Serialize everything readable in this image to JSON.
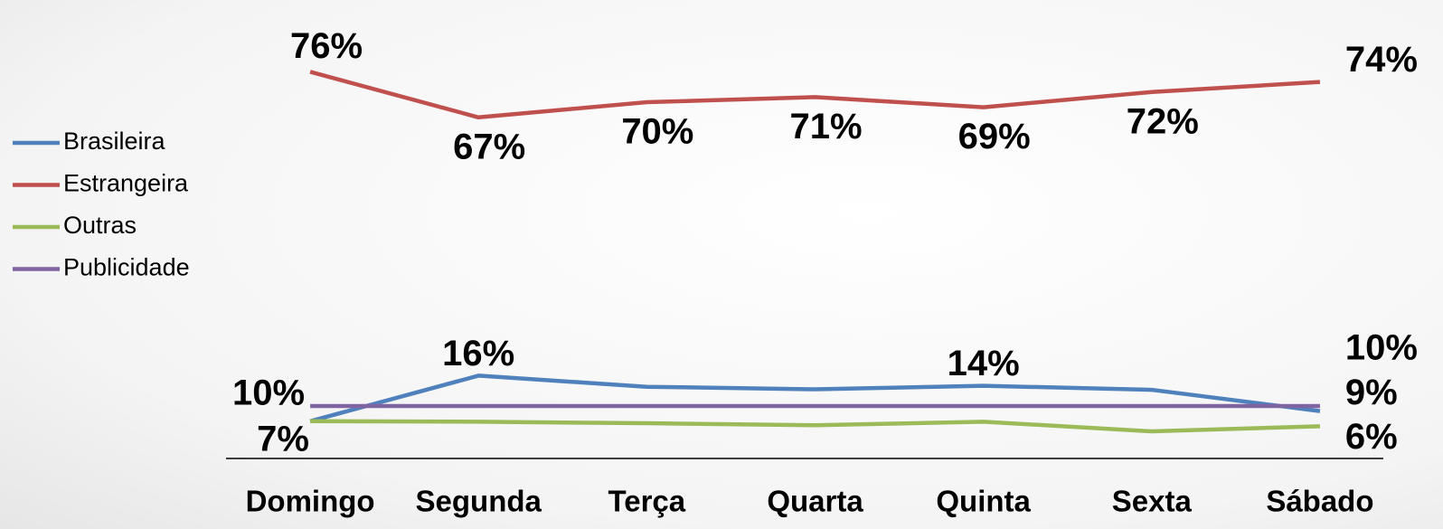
{
  "chart_data": {
    "type": "line",
    "categories": [
      "Domingo",
      "Segunda",
      "Terça",
      "Quarta",
      "Quinta",
      "Sexta",
      "Sábado"
    ],
    "ylim": [
      0,
      80
    ],
    "series": [
      {
        "name": "Brasileira",
        "color": "#4f81bd",
        "values": [
          7,
          16,
          13.8,
          13.3,
          14,
          13.2,
          9
        ],
        "value_labels": [
          "7%",
          "16%",
          null,
          null,
          "14%",
          null,
          "9%"
        ]
      },
      {
        "name": "Estrangeira",
        "color": "#c0504d",
        "values": [
          76,
          67,
          70,
          71,
          69,
          72,
          74
        ],
        "value_labels": [
          "76%",
          "67%",
          "70%",
          "71%",
          "69%",
          "72%",
          "74%"
        ]
      },
      {
        "name": "Outras",
        "color": "#9bbb59",
        "values": [
          7,
          6.9,
          6.6,
          6.2,
          6.9,
          5,
          6
        ],
        "value_labels": [
          null,
          null,
          null,
          null,
          null,
          null,
          "6%"
        ]
      },
      {
        "name": "Publicidade",
        "color": "#8064a2",
        "values": [
          10,
          10,
          10,
          10,
          10,
          10,
          10
        ],
        "value_labels": [
          "10%",
          null,
          null,
          null,
          null,
          null,
          "10%"
        ]
      }
    ],
    "legend": "left"
  }
}
